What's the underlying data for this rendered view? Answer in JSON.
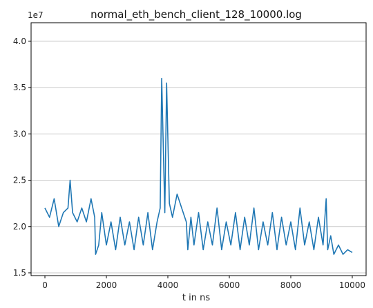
{
  "chart_data": {
    "type": "line",
    "title": "normal_eth_bench_client_128_10000.log",
    "xlabel": "t in ns",
    "ylabel": "",
    "y_offset_text": "1e7",
    "xlim": [
      -450,
      10450
    ],
    "ylim": [
      1.47,
      4.2
    ],
    "x_ticks": [
      0,
      2000,
      4000,
      6000,
      8000,
      10000
    ],
    "x_tick_labels": [
      "0",
      "2000",
      "4000",
      "6000",
      "8000",
      "10000"
    ],
    "y_ticks": [
      1.5,
      2.0,
      2.5,
      3.0,
      3.5,
      4.0
    ],
    "y_tick_labels": [
      "1.5",
      "2.0",
      "2.5",
      "3.0",
      "3.5",
      "4.0"
    ],
    "grid": "y",
    "line_color": "#1f77b4",
    "series": [
      {
        "x": [
          0,
          150,
          300,
          450,
          600,
          750,
          820,
          900,
          1050,
          1200,
          1350,
          1500,
          1620,
          1650,
          1750,
          1850,
          2000,
          2150,
          2300,
          2450,
          2600,
          2750,
          2900,
          3050,
          3200,
          3350,
          3500,
          3650,
          3750,
          3800,
          3900,
          3960,
          4050,
          4150,
          4300,
          4450,
          4600,
          4650,
          4750,
          4850,
          5000,
          5150,
          5300,
          5450,
          5600,
          5750,
          5900,
          6050,
          6200,
          6350,
          6500,
          6650,
          6800,
          6950,
          7100,
          7250,
          7400,
          7550,
          7700,
          7850,
          8000,
          8150,
          8300,
          8450,
          8600,
          8750,
          8900,
          9050,
          9150,
          9200,
          9300,
          9400,
          9550,
          9700,
          9850,
          10000
        ],
        "y": [
          2.2,
          2.1,
          2.3,
          2.0,
          2.15,
          2.2,
          2.5,
          2.15,
          2.05,
          2.2,
          2.05,
          2.3,
          2.1,
          1.7,
          1.8,
          2.15,
          1.8,
          2.05,
          1.75,
          2.1,
          1.8,
          2.05,
          1.75,
          2.1,
          1.8,
          2.15,
          1.75,
          2.05,
          2.2,
          3.6,
          2.15,
          3.55,
          2.25,
          2.1,
          2.35,
          2.2,
          2.05,
          1.75,
          2.1,
          1.8,
          2.15,
          1.75,
          2.05,
          1.8,
          2.2,
          1.75,
          2.05,
          1.8,
          2.15,
          1.75,
          2.1,
          1.8,
          2.2,
          1.75,
          2.05,
          1.8,
          2.15,
          1.75,
          2.1,
          1.8,
          2.05,
          1.75,
          2.2,
          1.8,
          2.05,
          1.75,
          2.1,
          1.8,
          2.3,
          1.75,
          1.9,
          1.7,
          1.8,
          1.7,
          1.75,
          1.72
        ]
      }
    ]
  }
}
